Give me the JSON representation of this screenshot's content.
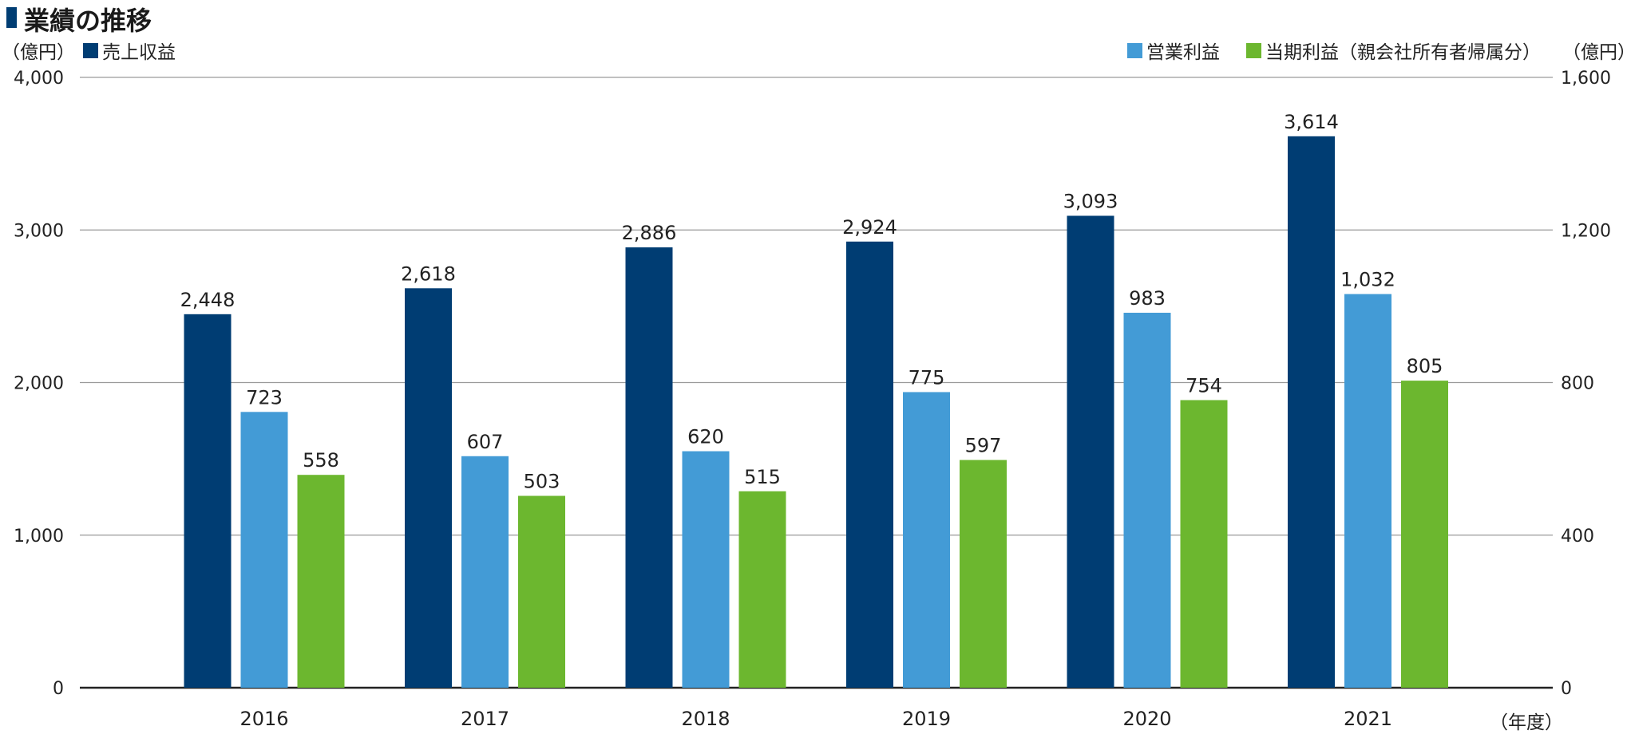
{
  "title": "業績の推移",
  "units": {
    "left": "（億円）",
    "right": "（億円）",
    "x": "（年度）"
  },
  "colors": {
    "revenue": "#003d73",
    "operating": "#439bd6",
    "net": "#6cb72f",
    "grid": "#9a9a9a",
    "axis": "#222222"
  },
  "legend": {
    "revenue": "売上収益",
    "operating": "営業利益",
    "net": "当期利益（親会社所有者帰属分）"
  },
  "chart_data": {
    "type": "bar",
    "title": "業績の推移",
    "categories": [
      "2016",
      "2017",
      "2018",
      "2019",
      "2020",
      "2021"
    ],
    "series": [
      {
        "name": "売上収益",
        "axis": "left",
        "color": "#003d73",
        "values": [
          2448,
          2618,
          2886,
          2924,
          3093,
          3614
        ],
        "labels": [
          "2,448",
          "2,618",
          "2,886",
          "2,924",
          "3,093",
          "3,614"
        ]
      },
      {
        "name": "営業利益",
        "axis": "right",
        "color": "#439bd6",
        "values": [
          723,
          607,
          620,
          775,
          983,
          1032
        ],
        "labels": [
          "723",
          "607",
          "620",
          "775",
          "983",
          "1,032"
        ]
      },
      {
        "name": "当期利益（親会社所有者帰属分）",
        "axis": "right",
        "color": "#6cb72f",
        "values": [
          558,
          503,
          515,
          597,
          754,
          805
        ],
        "labels": [
          "558",
          "503",
          "515",
          "597",
          "754",
          "805"
        ]
      }
    ],
    "y_left": {
      "range": [
        0,
        4000
      ],
      "ticks": [
        0,
        1000,
        2000,
        3000,
        4000
      ],
      "tick_labels": [
        "0",
        "1,000",
        "2,000",
        "3,000",
        "4,000"
      ]
    },
    "y_right": {
      "range": [
        0,
        1600
      ],
      "ticks": [
        0,
        400,
        800,
        1200,
        1600
      ],
      "tick_labels": [
        "0",
        "400",
        "800",
        "1,200",
        "1,600"
      ]
    },
    "grid": true,
    "legend_position": "top"
  }
}
